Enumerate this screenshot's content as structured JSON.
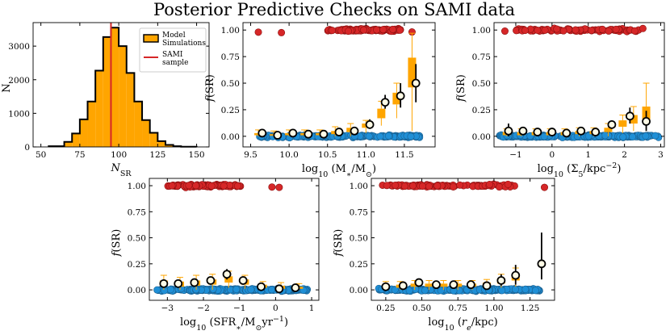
{
  "suptitle": "Posterior Predictive Checks on SAMI data",
  "colors": {
    "sr": "#d62728",
    "fr": "#1f8fd6",
    "model": "#ffa500",
    "black": "#000000"
  },
  "chart_data": [
    {
      "id": "hist",
      "type": "histogram",
      "xlabel": "N_SR",
      "ylabel": "N",
      "xlim": [
        45,
        158
      ],
      "ylim": [
        0,
        3700
      ],
      "xticks": [
        50,
        75,
        100,
        125,
        150
      ],
      "yticks": [
        0,
        1000,
        2000,
        3000
      ],
      "bin_edges": [
        55,
        65,
        70,
        75,
        80,
        85,
        90,
        95,
        100,
        105,
        110,
        115,
        120,
        125,
        130,
        135,
        140,
        150
      ],
      "counts": [
        20,
        150,
        400,
        820,
        1350,
        2270,
        3270,
        3550,
        3000,
        2200,
        1350,
        800,
        420,
        170,
        60,
        20,
        5
      ],
      "sami_value": 95,
      "legend": {
        "model": "Model Simulations",
        "model_line1": "Model",
        "model_line2": "Simulations",
        "sami": "SAMI sample",
        "sami_line1": "SAMI",
        "sami_line2": "sample",
        "position": "upper right"
      }
    },
    {
      "id": "mass",
      "type": "scatter",
      "xlabel": "log10 (M*/M⊙)",
      "ylabel": "f(SR)",
      "xlim": [
        9.4,
        11.9
      ],
      "ylim": [
        -0.1,
        1.07
      ],
      "xticks": [
        9.5,
        10.0,
        10.5,
        11.0,
        11.5
      ],
      "xtick_labels": [
        "9.5",
        "10.0",
        "10.5",
        "11.0",
        "11.5"
      ],
      "yticks": [
        0.0,
        0.25,
        0.5,
        0.75,
        1.0
      ],
      "ytick_labels": [
        "0.00",
        "0.25",
        "0.50",
        "0.75",
        "1.00"
      ],
      "sr_x_range": [
        10.5,
        11.45
      ],
      "sr_outliers": [
        9.6,
        9.9,
        11.6
      ],
      "fr_x_range": [
        9.55,
        11.7
      ],
      "model_boxes": [
        {
          "x": 9.6,
          "q1": 0.01,
          "q3": 0.03,
          "wlo": 0.0,
          "whi": 0.06
        },
        {
          "x": 9.8,
          "q1": 0.005,
          "q3": 0.02,
          "wlo": 0.0,
          "whi": 0.05
        },
        {
          "x": 10.0,
          "q1": 0.01,
          "q3": 0.03,
          "wlo": 0.0,
          "whi": 0.06
        },
        {
          "x": 10.2,
          "q1": 0.01,
          "q3": 0.03,
          "wlo": 0.0,
          "whi": 0.06
        },
        {
          "x": 10.4,
          "q1": 0.01,
          "q3": 0.03,
          "wlo": 0.0,
          "whi": 0.06
        },
        {
          "x": 10.6,
          "q1": 0.02,
          "q3": 0.05,
          "wlo": 0.0,
          "whi": 0.09
        },
        {
          "x": 10.8,
          "q1": 0.04,
          "q3": 0.08,
          "wlo": 0.0,
          "whi": 0.12
        },
        {
          "x": 11.0,
          "q1": 0.08,
          "q3": 0.12,
          "wlo": 0.03,
          "whi": 0.15
        },
        {
          "x": 11.2,
          "q1": 0.17,
          "q3": 0.26,
          "wlo": 0.1,
          "whi": 0.33
        },
        {
          "x": 11.4,
          "q1": 0.3,
          "q3": 0.41,
          "wlo": 0.17,
          "whi": 0.5
        },
        {
          "x": 11.6,
          "q1": 0.46,
          "q3": 0.74,
          "wlo": 0.05,
          "whi": 0.97
        }
      ],
      "observed": [
        {
          "x": 9.65,
          "y": 0.03,
          "lo": 0.01,
          "hi": 0.05
        },
        {
          "x": 9.85,
          "y": 0.01,
          "lo": 0.0,
          "hi": 0.03
        },
        {
          "x": 10.05,
          "y": 0.03,
          "lo": 0.01,
          "hi": 0.05
        },
        {
          "x": 10.25,
          "y": 0.02,
          "lo": 0.0,
          "hi": 0.04
        },
        {
          "x": 10.45,
          "y": 0.02,
          "lo": 0.0,
          "hi": 0.04
        },
        {
          "x": 10.65,
          "y": 0.04,
          "lo": 0.02,
          "hi": 0.06
        },
        {
          "x": 10.85,
          "y": 0.05,
          "lo": 0.02,
          "hi": 0.08
        },
        {
          "x": 11.05,
          "y": 0.11,
          "lo": 0.07,
          "hi": 0.16
        },
        {
          "x": 11.25,
          "y": 0.32,
          "lo": 0.26,
          "hi": 0.39
        },
        {
          "x": 11.45,
          "y": 0.38,
          "lo": 0.27,
          "hi": 0.5
        },
        {
          "x": 11.65,
          "y": 0.5,
          "lo": 0.32,
          "hi": 0.68
        }
      ]
    },
    {
      "id": "density",
      "type": "scatter",
      "xlabel": "log10 (Σ5/kpc⁻²)",
      "ylabel": "f(SR)",
      "xlim": [
        -1.6,
        3.1
      ],
      "ylim": [
        -0.1,
        1.07
      ],
      "xticks": [
        -1,
        0,
        1,
        2,
        3
      ],
      "xtick_labels": [
        "−1",
        "0",
        "1",
        "2",
        "3"
      ],
      "yticks": [
        0.0,
        0.25,
        0.5,
        0.75,
        1.0
      ],
      "ytick_labels": [
        "0.00",
        "0.25",
        "0.50",
        "0.75",
        "1.00"
      ],
      "sr_x_range": [
        -1.0,
        2.6
      ],
      "sr_outliers": [
        -1.3
      ],
      "fr_x_range": [
        -1.45,
        2.95
      ],
      "model_boxes": [
        {
          "x": -1.25,
          "q1": 0.01,
          "q3": 0.04,
          "wlo": 0.0,
          "whi": 0.07
        },
        {
          "x": -0.85,
          "q1": 0.01,
          "q3": 0.04,
          "wlo": 0.0,
          "whi": 0.07
        },
        {
          "x": -0.45,
          "q1": 0.01,
          "q3": 0.04,
          "wlo": 0.0,
          "whi": 0.07
        },
        {
          "x": -0.05,
          "q1": 0.01,
          "q3": 0.04,
          "wlo": 0.0,
          "whi": 0.07
        },
        {
          "x": 0.35,
          "q1": 0.01,
          "q3": 0.04,
          "wlo": 0.0,
          "whi": 0.07
        },
        {
          "x": 0.75,
          "q1": 0.02,
          "q3": 0.05,
          "wlo": 0.0,
          "whi": 0.08
        },
        {
          "x": 1.15,
          "q1": 0.02,
          "q3": 0.05,
          "wlo": 0.0,
          "whi": 0.08
        },
        {
          "x": 1.55,
          "q1": 0.04,
          "q3": 0.08,
          "wlo": 0.0,
          "whi": 0.12
        },
        {
          "x": 1.95,
          "q1": 0.09,
          "q3": 0.15,
          "wlo": 0.03,
          "whi": 0.2
        },
        {
          "x": 2.25,
          "q1": 0.12,
          "q3": 0.2,
          "wlo": 0.05,
          "whi": 0.28
        },
        {
          "x": 2.6,
          "q1": 0.16,
          "q3": 0.28,
          "wlo": 0.05,
          "whi": 0.5
        }
      ],
      "observed": [
        {
          "x": -1.2,
          "y": 0.05,
          "lo": 0.0,
          "hi": 0.12
        },
        {
          "x": -0.8,
          "y": 0.05,
          "lo": 0.02,
          "hi": 0.08
        },
        {
          "x": -0.4,
          "y": 0.04,
          "lo": 0.02,
          "hi": 0.06
        },
        {
          "x": 0.0,
          "y": 0.04,
          "lo": 0.02,
          "hi": 0.06
        },
        {
          "x": 0.4,
          "y": 0.03,
          "lo": 0.01,
          "hi": 0.05
        },
        {
          "x": 0.8,
          "y": 0.05,
          "lo": 0.03,
          "hi": 0.07
        },
        {
          "x": 1.2,
          "y": 0.04,
          "lo": 0.02,
          "hi": 0.06
        },
        {
          "x": 1.65,
          "y": 0.11,
          "lo": 0.07,
          "hi": 0.15
        },
        {
          "x": 2.15,
          "y": 0.19,
          "lo": 0.12,
          "hi": 0.27
        },
        {
          "x": 2.6,
          "y": 0.14,
          "lo": 0.05,
          "hi": 0.24
        }
      ]
    },
    {
      "id": "sfr",
      "type": "scatter",
      "xlabel": "log10 (SFR*/M⊙yr⁻¹)",
      "ylabel": "f(SR)",
      "xlim": [
        -3.5,
        1.2
      ],
      "ylim": [
        -0.1,
        1.07
      ],
      "xticks": [
        -3,
        -2,
        -1,
        0,
        1
      ],
      "xtick_labels": [
        "−3",
        "−2",
        "−1",
        "0",
        "1"
      ],
      "yticks": [
        0.0,
        0.25,
        0.5,
        0.75,
        1.0
      ],
      "ytick_labels": [
        "0.00",
        "0.25",
        "0.50",
        "0.75",
        "1.00"
      ],
      "sr_x_range": [
        -3.0,
        -0.9
      ],
      "sr_outliers": [
        -0.1,
        0.1
      ],
      "fr_x_range": [
        -3.3,
        0.9
      ],
      "model_boxes": [
        {
          "x": -3.1,
          "q1": 0.04,
          "q3": 0.09,
          "wlo": 0.0,
          "whi": 0.14
        },
        {
          "x": -2.65,
          "q1": 0.03,
          "q3": 0.08,
          "wlo": 0.0,
          "whi": 0.12
        },
        {
          "x": -2.2,
          "q1": 0.04,
          "q3": 0.09,
          "wlo": 0.0,
          "whi": 0.14
        },
        {
          "x": -1.75,
          "q1": 0.05,
          "q3": 0.1,
          "wlo": 0.0,
          "whi": 0.15
        },
        {
          "x": -1.3,
          "q1": 0.07,
          "q3": 0.13,
          "wlo": 0.02,
          "whi": 0.18
        },
        {
          "x": -0.85,
          "q1": 0.05,
          "q3": 0.1,
          "wlo": 0.01,
          "whi": 0.14
        },
        {
          "x": -0.35,
          "q1": 0.02,
          "q3": 0.05,
          "wlo": 0.0,
          "whi": 0.08
        },
        {
          "x": 0.15,
          "q1": 0.01,
          "q3": 0.04,
          "wlo": 0.0,
          "whi": 0.07
        },
        {
          "x": 0.65,
          "q1": 0.01,
          "q3": 0.03,
          "wlo": 0.0,
          "whi": 0.06
        }
      ],
      "observed": [
        {
          "x": -3.1,
          "y": 0.06,
          "lo": 0.02,
          "hi": 0.1
        },
        {
          "x": -2.7,
          "y": 0.06,
          "lo": 0.03,
          "hi": 0.09
        },
        {
          "x": -2.25,
          "y": 0.07,
          "lo": 0.04,
          "hi": 0.1
        },
        {
          "x": -1.8,
          "y": 0.09,
          "lo": 0.06,
          "hi": 0.12
        },
        {
          "x": -1.35,
          "y": 0.15,
          "lo": 0.1,
          "hi": 0.2
        },
        {
          "x": -0.9,
          "y": 0.09,
          "lo": 0.05,
          "hi": 0.13
        },
        {
          "x": -0.4,
          "y": 0.03,
          "lo": 0.01,
          "hi": 0.05
        },
        {
          "x": 0.1,
          "y": 0.01,
          "lo": 0.0,
          "hi": 0.03
        },
        {
          "x": 0.55,
          "y": 0.02,
          "lo": 0.0,
          "hi": 0.04
        }
      ]
    },
    {
      "id": "re",
      "type": "scatter",
      "xlabel": "log10 (rₑ/kpc)",
      "ylabel": "f(SR)",
      "xlim": [
        0.15,
        1.42
      ],
      "ylim": [
        -0.1,
        1.07
      ],
      "xticks": [
        0.25,
        0.5,
        0.75,
        1.0,
        1.25
      ],
      "xtick_labels": [
        "0.25",
        "0.50",
        "0.75",
        "1.00",
        "1.25"
      ],
      "yticks": [
        0.0,
        0.25,
        0.5,
        0.75,
        1.0
      ],
      "ytick_labels": [
        "0.00",
        "0.25",
        "0.50",
        "0.75",
        "1.00"
      ],
      "sr_x_range": [
        0.22,
        1.15
      ],
      "sr_outliers": [
        1.35
      ],
      "fr_x_range": [
        0.2,
        1.32
      ],
      "model_boxes": [
        {
          "x": 0.25,
          "q1": 0.02,
          "q3": 0.05,
          "wlo": 0.0,
          "whi": 0.08
        },
        {
          "x": 0.35,
          "q1": 0.02,
          "q3": 0.05,
          "wlo": 0.0,
          "whi": 0.08
        },
        {
          "x": 0.45,
          "q1": 0.03,
          "q3": 0.06,
          "wlo": 0.0,
          "whi": 0.09
        },
        {
          "x": 0.55,
          "q1": 0.03,
          "q3": 0.06,
          "wlo": 0.0,
          "whi": 0.09
        },
        {
          "x": 0.65,
          "q1": 0.03,
          "q3": 0.06,
          "wlo": 0.0,
          "whi": 0.09
        },
        {
          "x": 0.75,
          "q1": 0.03,
          "q3": 0.06,
          "wlo": 0.0,
          "whi": 0.09
        },
        {
          "x": 0.85,
          "q1": 0.03,
          "q3": 0.06,
          "wlo": 0.0,
          "whi": 0.09
        },
        {
          "x": 0.95,
          "q1": 0.03,
          "q3": 0.07,
          "wlo": 0.0,
          "whi": 0.1
        },
        {
          "x": 1.05,
          "q1": 0.06,
          "q3": 0.11,
          "wlo": 0.02,
          "whi": 0.15
        },
        {
          "x": 1.15,
          "q1": 0.09,
          "q3": 0.15,
          "wlo": 0.03,
          "whi": 0.21
        }
      ],
      "observed": [
        {
          "x": 0.25,
          "y": 0.03,
          "lo": 0.01,
          "hi": 0.05
        },
        {
          "x": 0.37,
          "y": 0.04,
          "lo": 0.02,
          "hi": 0.06
        },
        {
          "x": 0.48,
          "y": 0.07,
          "lo": 0.05,
          "hi": 0.09
        },
        {
          "x": 0.6,
          "y": 0.05,
          "lo": 0.03,
          "hi": 0.07
        },
        {
          "x": 0.72,
          "y": 0.05,
          "lo": 0.03,
          "hi": 0.07
        },
        {
          "x": 0.84,
          "y": 0.05,
          "lo": 0.03,
          "hi": 0.07
        },
        {
          "x": 0.95,
          "y": 0.04,
          "lo": 0.02,
          "hi": 0.06
        },
        {
          "x": 1.05,
          "y": 0.09,
          "lo": 0.04,
          "hi": 0.15
        },
        {
          "x": 1.15,
          "y": 0.14,
          "lo": 0.05,
          "hi": 0.24
        },
        {
          "x": 1.33,
          "y": 0.25,
          "lo": 0.1,
          "hi": 0.55
        }
      ]
    }
  ]
}
